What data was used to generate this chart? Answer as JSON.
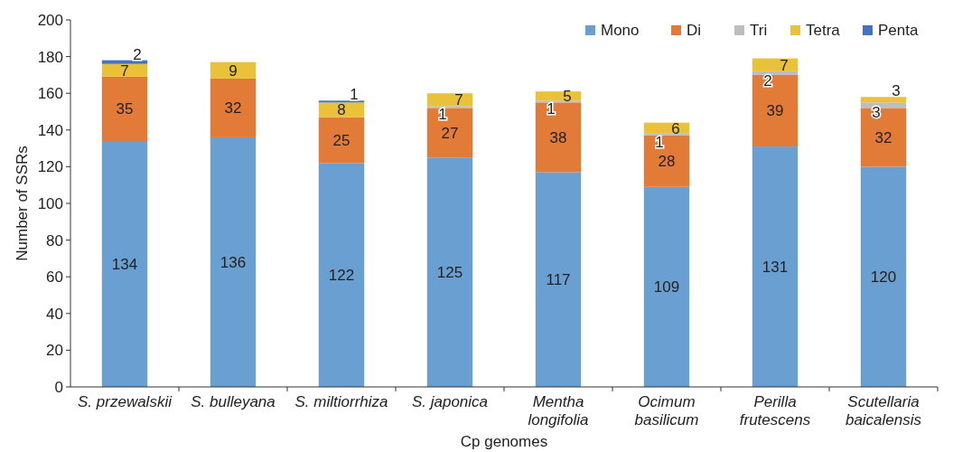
{
  "chart_data": {
    "type": "bar",
    "stacked": true,
    "xlabel": "Cp genomes",
    "ylabel": "Number of SSRs",
    "categories": [
      "S. przewalskii",
      "S. bulleyana",
      "S. miltiorrhiza",
      "S. japonica",
      "Mentha longifolia",
      "Ocimum basilicum",
      "Perilla frutescens",
      "Scutellaria baicalensis"
    ],
    "series": [
      {
        "name": "Mono",
        "color": "#6a9fd2",
        "values": [
          134,
          136,
          122,
          125,
          117,
          109,
          131,
          120
        ],
        "value_labels": [
          "134",
          "136",
          "122",
          "125",
          "117",
          "109",
          "131",
          "120"
        ]
      },
      {
        "name": "Di",
        "color": "#e27a38",
        "values": [
          35,
          32,
          25,
          27,
          38,
          28,
          39,
          32
        ],
        "value_labels": [
          "35",
          "32",
          "25",
          "27",
          "38",
          "28",
          "39",
          "32"
        ]
      },
      {
        "name": "Tri",
        "color": "#bdbdbd",
        "values": [
          0,
          0,
          0,
          1,
          1,
          1,
          2,
          3
        ],
        "value_labels": [
          null,
          null,
          null,
          "1",
          "1",
          "1",
          "2",
          "3"
        ]
      },
      {
        "name": "Tetra",
        "color": "#e9c23a",
        "values": [
          7,
          9,
          8,
          7,
          5,
          6,
          7,
          3
        ],
        "value_labels": [
          "7",
          "9",
          "8",
          "7",
          "5",
          "6",
          "7",
          "3"
        ]
      },
      {
        "name": "Penta",
        "color": "#4472c4",
        "values": [
          2,
          0,
          1,
          0,
          0,
          0,
          0,
          0
        ],
        "value_labels": [
          "2",
          null,
          "1",
          null,
          null,
          null,
          null,
          null
        ]
      }
    ],
    "ylim": [
      0,
      200
    ],
    "yticks": [
      0,
      20,
      40,
      60,
      80,
      100,
      120,
      140,
      160,
      180,
      200
    ],
    "grid": false,
    "legend": "top right"
  }
}
